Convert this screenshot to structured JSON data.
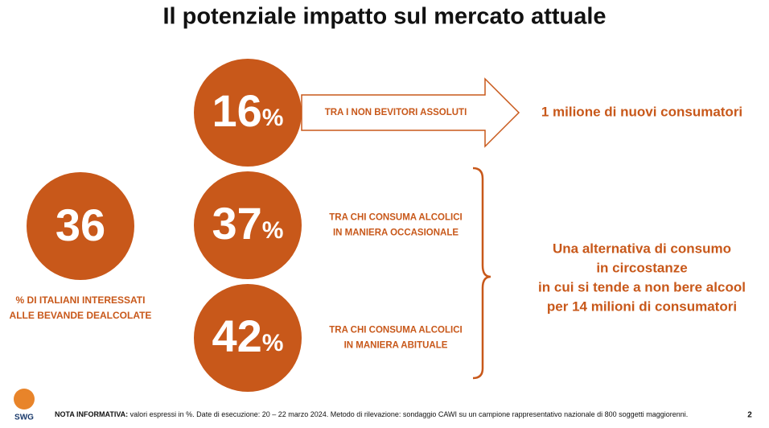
{
  "title": "Il potenziale impatto sul mercato attuale",
  "main": {
    "value": 36,
    "caption": [
      "% DI ITALIANI INTERESSATI",
      "ALLE BEVANDE DEALCOLATE"
    ]
  },
  "groups": [
    {
      "value": 16,
      "unit": "%",
      "label": [
        "TRA I NON BEVITORI ASSOLUTI"
      ]
    },
    {
      "value": 37,
      "unit": "%",
      "label": [
        "TRA CHI CONSUMA ALCOLICI",
        "IN MANIERA OCCASIONALE"
      ]
    },
    {
      "value": 42,
      "unit": "%",
      "label": [
        "TRA CHI CONSUMA ALCOLICI",
        "IN MANIERA ABITUALE"
      ]
    }
  ],
  "outcome_new": "1 milione di nuovi consumatori",
  "outcome_alt": [
    "Una alternativa di consumo",
    "in circostanze",
    "in cui si tende a non bere alcool",
    "per 14 milioni di consumatori"
  ],
  "footer": {
    "note_label": "NOTA INFORMATIVA:",
    "note": " valori espressi in %. Date di esecuzione: 20 – 22 marzo 2024. Metodo di rilevazione: sondaggio CAWI su un campione rappresentativo nazionale di 800 soggetti maggiorenni.",
    "page": "2",
    "logo": "SWG"
  }
}
